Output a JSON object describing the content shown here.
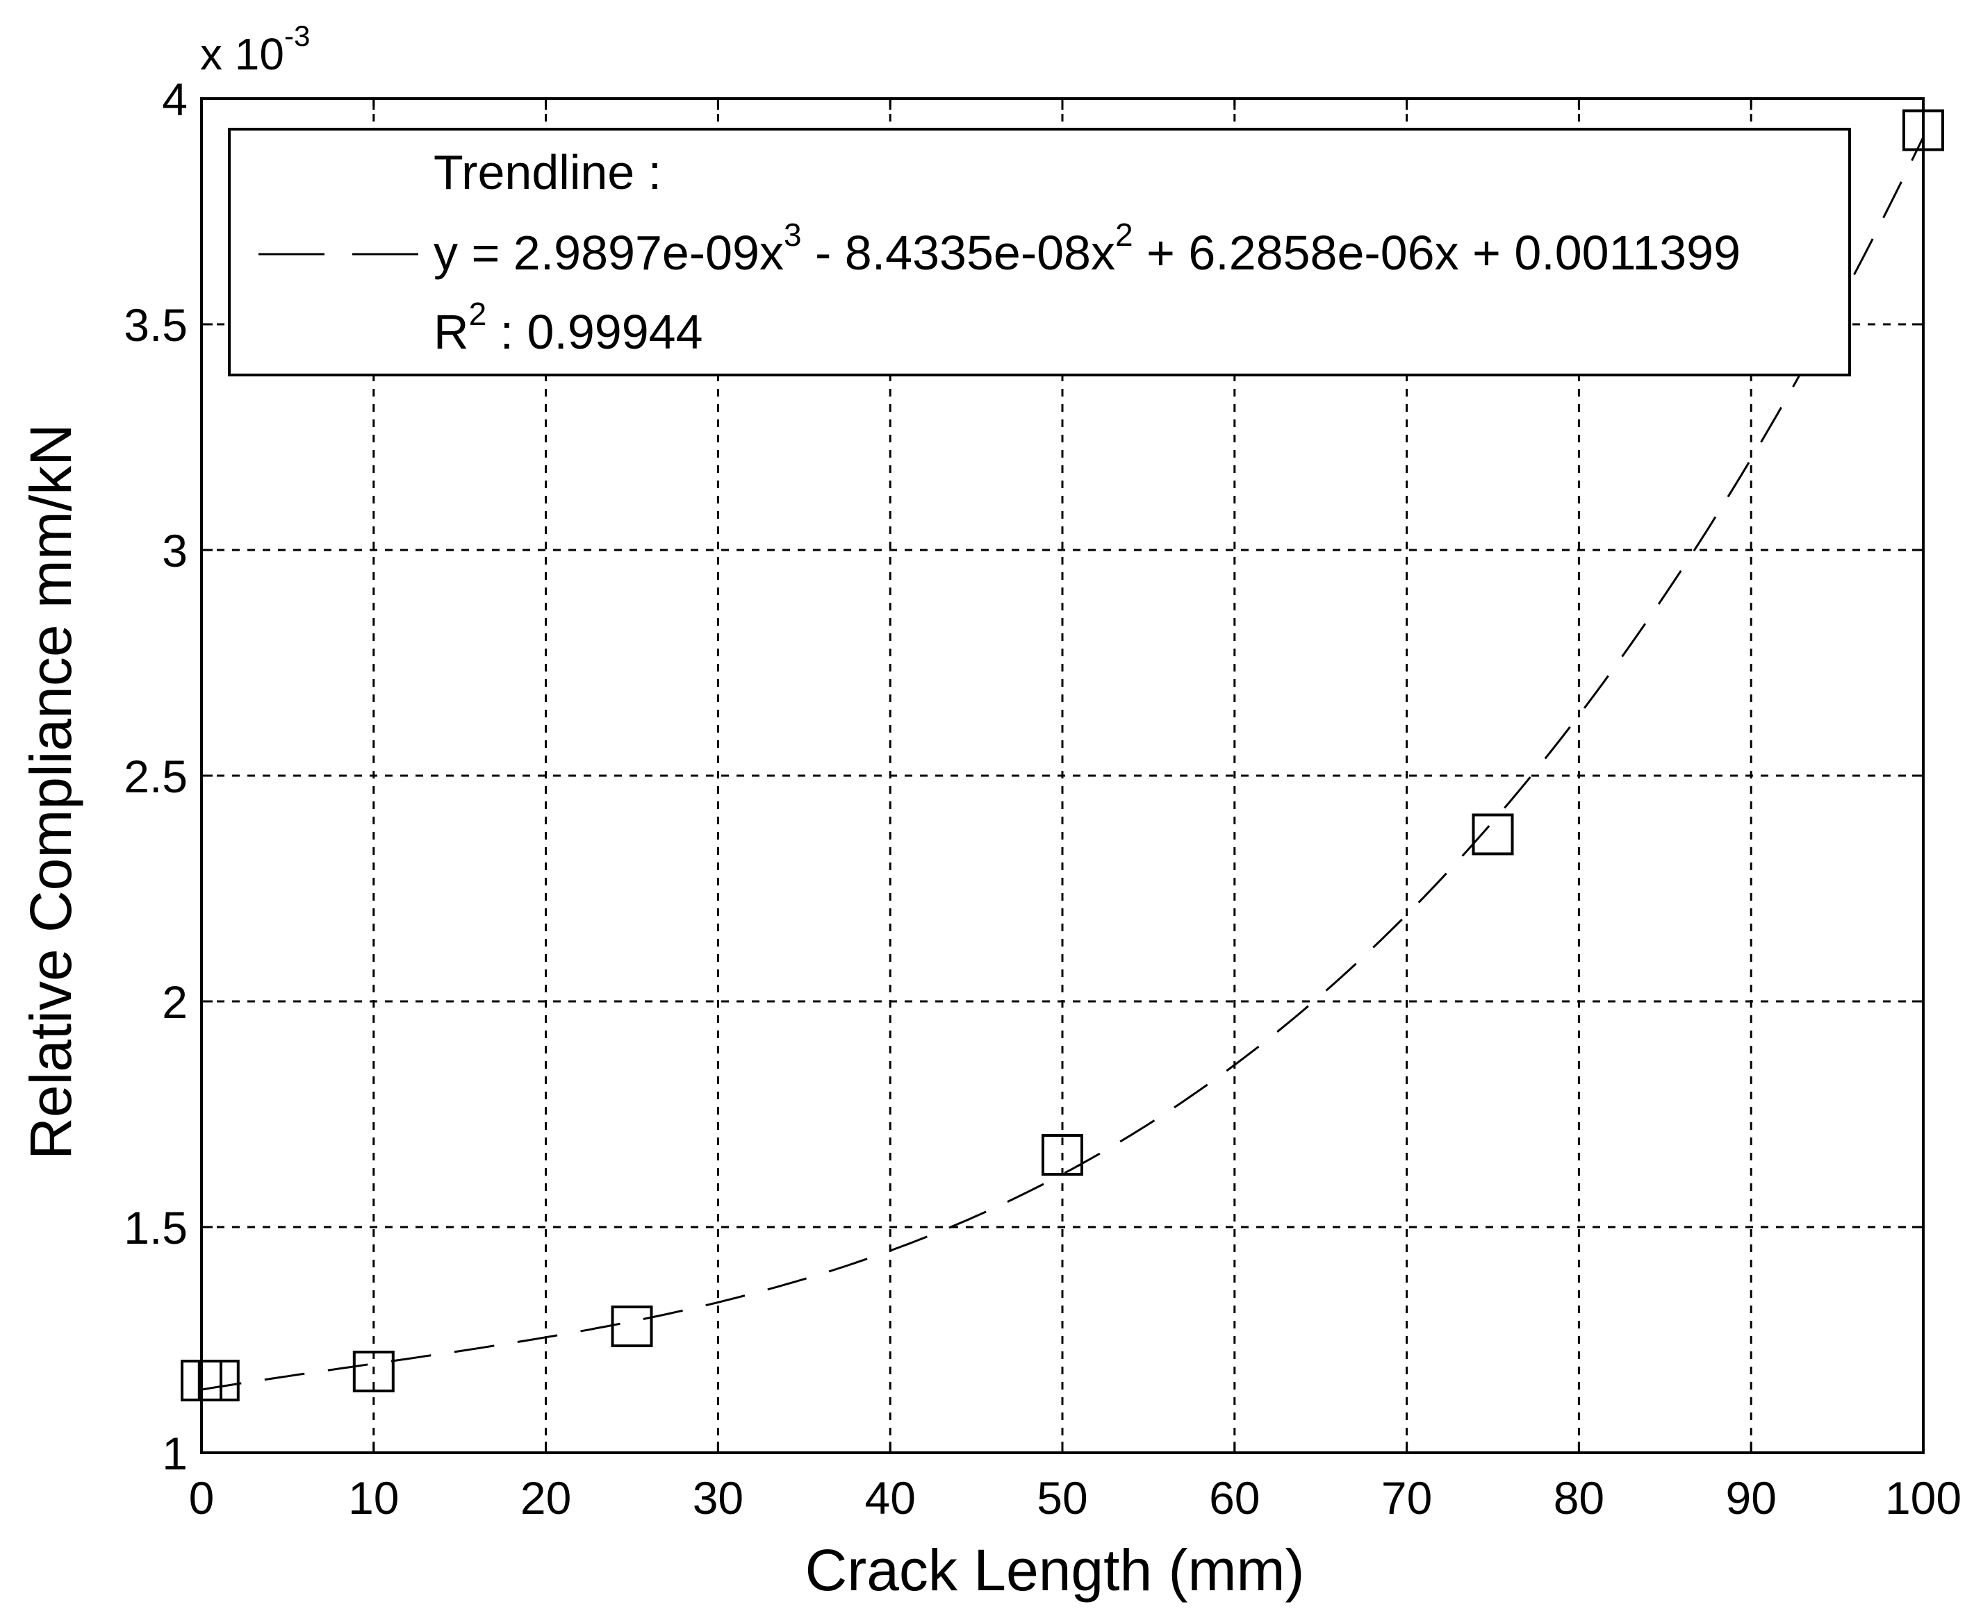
{
  "chart_data": {
    "type": "scatter",
    "xlabel": "Crack Length (mm)",
    "ylabel": "Relative Compliance mm/kN",
    "xlim": [
      0,
      100
    ],
    "ylim": [
      1,
      4
    ],
    "x_ticks": [
      0,
      10,
      20,
      30,
      40,
      50,
      60,
      70,
      80,
      90,
      100
    ],
    "y_ticks": [
      1,
      1.5,
      2,
      2.5,
      3,
      3.5,
      4
    ],
    "y_tick_labels": [
      "1",
      "1.5",
      "2",
      "2.5",
      "3",
      "3.5",
      "4"
    ],
    "y_multiplier": {
      "base": "x 10",
      "exponent": "-3"
    },
    "grid": true,
    "legend_position": "top",
    "series": [
      {
        "marker": "square",
        "x": [
          0,
          1,
          10,
          25,
          50,
          75,
          100
        ],
        "y": [
          1.16,
          1.16,
          1.18,
          1.28,
          1.66,
          2.37,
          3.93
        ]
      }
    ],
    "trendline": {
      "style": "dashed",
      "coefficients": [
        2.9897e-09,
        -8.4335e-08,
        6.2858e-06,
        0.0011399
      ],
      "legend": {
        "title": "Trendline :",
        "equation_parts": [
          "y = 2.9897e-09x",
          "3",
          " - 8.4335e-08x",
          "2",
          " + 6.2858e-06x + 0.0011399"
        ],
        "r2_label": "R",
        "r2_sup": "2",
        "r2_value": " : 0.99944"
      }
    }
  }
}
